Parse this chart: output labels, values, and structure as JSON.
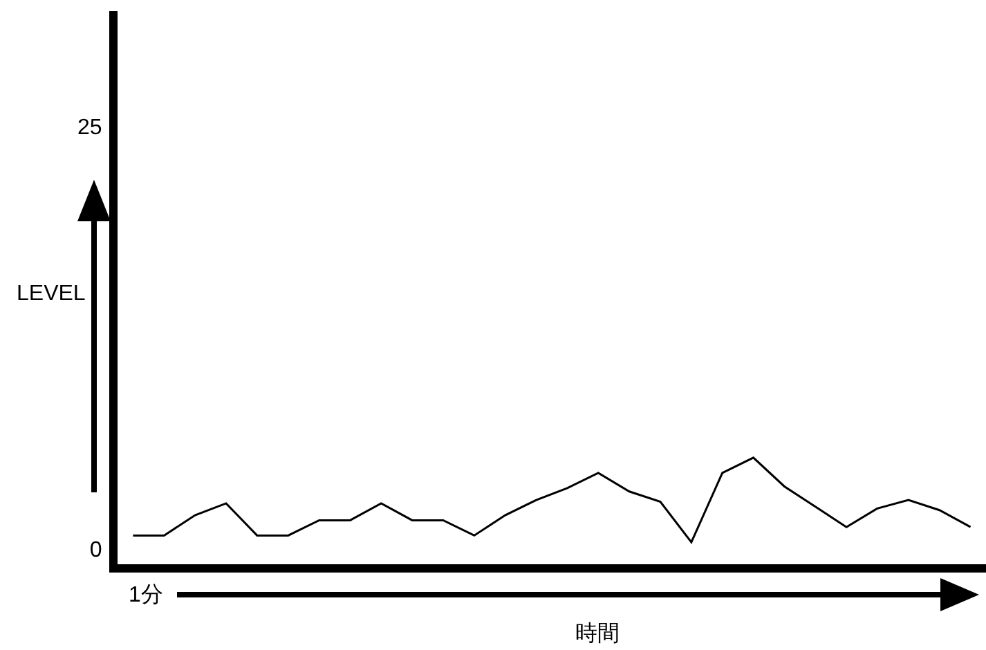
{
  "chart_data": {
    "type": "line",
    "xlabel": "時間",
    "ylabel": "LEVEL",
    "categories": [
      null,
      null,
      null,
      null,
      null,
      null,
      null,
      null,
      null,
      null,
      null,
      null,
      null,
      null,
      null,
      null,
      null,
      null,
      null,
      null,
      null,
      null,
      null,
      null,
      null,
      null,
      null,
      null
    ],
    "series": [
      {
        "color": "#000000",
        "values": [
          0.8,
          0.8,
          2.0,
          2.7,
          0.8,
          0.8,
          1.7,
          1.7,
          2.7,
          1.7,
          1.7,
          0.8,
          2.0,
          2.9,
          3.6,
          4.5,
          3.4,
          2.8,
          0.4,
          4.5,
          5.4,
          3.7,
          2.5,
          1.3,
          2.4,
          2.9,
          2.3,
          1.3
        ]
      }
    ],
    "annotations": [
      "1分"
    ],
    "ylim": [
      -0.9,
      31.8
    ],
    "yticks": [
      0,
      25
    ],
    "tick_labels": "y",
    "grid": false,
    "legend": false,
    "marker": "none",
    "line_style": "solid"
  }
}
